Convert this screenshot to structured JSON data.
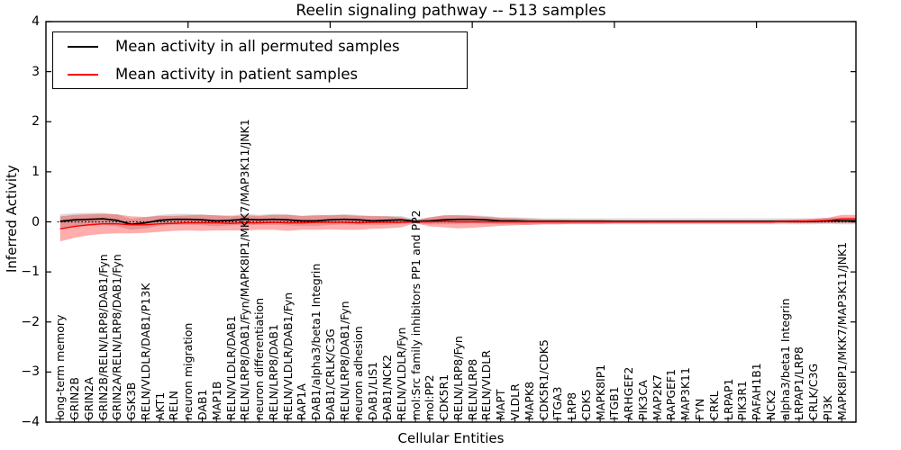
{
  "chart_data": {
    "type": "line",
    "title": "Reelin signaling pathway -- 513 samples",
    "xlabel": "Cellular Entities",
    "ylabel": "Inferred Activity",
    "ylim": [
      -4,
      4
    ],
    "grid": false,
    "legend_position": "upper left",
    "zero_reference_line": {
      "value": 0,
      "style": "dashed",
      "color": "#000000"
    },
    "yticks": [
      {
        "value": 4,
        "label": "4"
      },
      {
        "value": 3,
        "label": "3"
      },
      {
        "value": 2,
        "label": "2"
      },
      {
        "value": 1,
        "label": "1"
      },
      {
        "value": 0,
        "label": "0"
      },
      {
        "value": -1,
        "label": "−1"
      },
      {
        "value": -2,
        "label": "−2"
      },
      {
        "value": -3,
        "label": "−3"
      },
      {
        "value": -4,
        "label": "−4"
      }
    ],
    "top_tick_indices": [
      9,
      19,
      29,
      39,
      49
    ],
    "categories": [
      "long-term memory",
      "GRIN2B",
      "GRIN2A",
      "GRIN2B/RELN/LRP8/DAB1/Fyn",
      "GRIN2A/RELN/LRP8/DAB1/Fyn",
      "GSK3B",
      "RELN/VLDLR/DAB1/P13K",
      "AKT1",
      "RELN",
      "neuron migration",
      "DAB1",
      "MAP1B",
      "RELN/VLDLR/DAB1",
      "RELN/LRP8/DAB1/Fyn/MAPK8IP1/MKK7/MAP3K11/JNK1",
      "neuron differentiation",
      "RELN/LRP8/DAB1",
      "RELN/VLDLR/DAB1/Fyn",
      "RAP1A",
      "DAB1/alpha3/beta1 Integrin",
      "DAB1/CRLK/C3G",
      "RELN/LRP8/DAB1/Fyn",
      "neuron adhesion",
      "DAB1/LIS1",
      "DAB1/NCK2",
      "RELN/VLDLR/Fyn",
      "mol:Src family inhibitors PP1 and PP2",
      "mol:PP2",
      "CDK5R1",
      "RELN/LRP8/Fyn",
      "RELN/LRP8",
      "RELN/VLDLR",
      "MAPT",
      "VLDLR",
      "MAPK8",
      "CDK5R1/CDK5",
      "ITGA3",
      "LRP8",
      "CDK5",
      "MAPK8IP1",
      "ITGB1",
      "ARHGEF2",
      "PIK3CA",
      "MAP2K7",
      "RAPGEF1",
      "MAP3K11",
      "FYN",
      "CRKL",
      "LRPAP1",
      "PIK3R1",
      "PAFAH1B1",
      "NCK2",
      "alpha3/beta1 Integrin",
      "LRPAP1/LRP8",
      "CRLK/C3G",
      "PI3K",
      "MAPK8IP1/MKK7/MAP3K11/JNK1"
    ],
    "series": [
      {
        "name": "Mean activity in all permuted samples",
        "color": "#000000",
        "line_width": 1.8,
        "band_opacity": 0.15,
        "values": [
          0.01,
          0.04,
          0.05,
          0.06,
          0.03,
          -0.05,
          -0.02,
          0.03,
          0.05,
          0.05,
          0.04,
          0.02,
          0.03,
          0.05,
          0.04,
          0.05,
          0.04,
          0.02,
          0.02,
          0.04,
          0.05,
          0.04,
          0.02,
          0.03,
          0.04,
          0.01,
          0.02,
          0.04,
          0.05,
          0.05,
          0.04,
          0.02,
          0.02,
          0.01,
          0.01,
          0.01,
          0.01,
          0.01,
          0.01,
          0.01,
          0.01,
          0.01,
          0.01,
          0.01,
          0.01,
          0.01,
          0.01,
          0.01,
          0.01,
          0.01,
          0.01,
          0.01,
          0.01,
          0.01,
          0.02,
          0.02
        ],
        "band": [
          0.14,
          0.13,
          0.13,
          0.12,
          0.12,
          0.11,
          0.11,
          0.11,
          0.11,
          0.11,
          0.11,
          0.11,
          0.1,
          0.11,
          0.1,
          0.11,
          0.11,
          0.1,
          0.1,
          0.1,
          0.1,
          0.1,
          0.09,
          0.09,
          0.08,
          0.04,
          0.07,
          0.09,
          0.09,
          0.08,
          0.08,
          0.07,
          0.07,
          0.07,
          0.06,
          0.06,
          0.06,
          0.06,
          0.06,
          0.06,
          0.06,
          0.06,
          0.06,
          0.06,
          0.06,
          0.06,
          0.06,
          0.06,
          0.06,
          0.06,
          0.06,
          0.06,
          0.06,
          0.06,
          0.06,
          0.07
        ]
      },
      {
        "name": "Mean activity in patient samples",
        "color": "#ff0000",
        "line_width": 1.4,
        "band_opacity": 0.32,
        "values": [
          -0.14,
          -0.09,
          -0.06,
          -0.04,
          -0.04,
          -0.06,
          -0.06,
          -0.04,
          -0.03,
          -0.02,
          -0.02,
          -0.02,
          -0.03,
          -0.02,
          -0.02,
          -0.01,
          -0.02,
          -0.02,
          -0.01,
          -0.01,
          -0.01,
          -0.02,
          -0.01,
          -0.01,
          -0.01,
          0.0,
          0.0,
          0.01,
          0.0,
          0.0,
          0.0,
          0.0,
          0.0,
          0.0,
          0.0,
          0.0,
          0.0,
          0.0,
          0.0,
          0.0,
          0.0,
          0.0,
          0.0,
          0.0,
          0.0,
          0.0,
          0.0,
          0.0,
          0.0,
          0.0,
          0.0,
          0.01,
          0.01,
          0.02,
          0.03,
          0.06
        ],
        "band": [
          0.25,
          0.23,
          0.21,
          0.2,
          0.19,
          0.17,
          0.16,
          0.16,
          0.15,
          0.15,
          0.16,
          0.15,
          0.14,
          0.15,
          0.14,
          0.15,
          0.16,
          0.14,
          0.15,
          0.14,
          0.15,
          0.14,
          0.13,
          0.12,
          0.1,
          0.03,
          0.09,
          0.12,
          0.13,
          0.12,
          0.1,
          0.08,
          0.07,
          0.06,
          0.05,
          0.05,
          0.04,
          0.04,
          0.04,
          0.03,
          0.03,
          0.03,
          0.03,
          0.03,
          0.03,
          0.03,
          0.03,
          0.03,
          0.03,
          0.03,
          0.03,
          0.03,
          0.04,
          0.04,
          0.05,
          0.08
        ]
      }
    ]
  }
}
